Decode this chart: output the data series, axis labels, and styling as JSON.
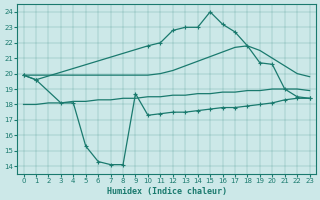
{
  "xlabel": "Humidex (Indice chaleur)",
  "background_color": "#cce8e8",
  "line_color": "#1a7a6e",
  "xlim": [
    -0.5,
    23.5
  ],
  "ylim": [
    13.5,
    24.5
  ],
  "xticks": [
    0,
    1,
    2,
    3,
    4,
    5,
    6,
    7,
    8,
    9,
    10,
    11,
    12,
    13,
    14,
    15,
    16,
    17,
    18,
    19,
    20,
    21,
    22,
    23
  ],
  "yticks": [
    14,
    15,
    16,
    17,
    18,
    19,
    20,
    21,
    22,
    23,
    24
  ],
  "line1_x": [
    0,
    1,
    2,
    3,
    4,
    5,
    6,
    7,
    8,
    9,
    10,
    11,
    12,
    13,
    14,
    15,
    16,
    17,
    18,
    19,
    20,
    21,
    22,
    23
  ],
  "line1_y": [
    19.9,
    19.9,
    19.9,
    19.9,
    19.9,
    19.9,
    19.9,
    19.9,
    19.9,
    19.9,
    19.9,
    20.0,
    20.2,
    20.5,
    20.8,
    21.1,
    21.4,
    21.7,
    21.8,
    21.5,
    21.0,
    20.5,
    20.0,
    19.8
  ],
  "line2_x": [
    0,
    1,
    2,
    3,
    4,
    5,
    6,
    7,
    8,
    9,
    10,
    11,
    12,
    13,
    14,
    15,
    16,
    17,
    18,
    19,
    20,
    21,
    22,
    23
  ],
  "line2_y": [
    18.0,
    18.0,
    18.1,
    18.1,
    18.2,
    18.2,
    18.3,
    18.3,
    18.4,
    18.4,
    18.5,
    18.5,
    18.6,
    18.6,
    18.7,
    18.7,
    18.8,
    18.8,
    18.9,
    18.9,
    19.0,
    19.0,
    19.0,
    18.9
  ],
  "line3_x": [
    0,
    1,
    3,
    4,
    5,
    6,
    7,
    8,
    9,
    10,
    11,
    12,
    13,
    14,
    15,
    16,
    17,
    18,
    19,
    20,
    21,
    22,
    23
  ],
  "line3_y": [
    19.9,
    19.6,
    18.1,
    18.1,
    15.3,
    14.3,
    14.1,
    14.1,
    18.7,
    17.3,
    17.4,
    17.5,
    17.5,
    17.6,
    17.7,
    17.8,
    17.8,
    17.9,
    18.0,
    18.1,
    18.3,
    18.4,
    18.4
  ],
  "line4_x": [
    0,
    1,
    10,
    11,
    12,
    13,
    14,
    15,
    16,
    17,
    18,
    19,
    20,
    21,
    22,
    23
  ],
  "line4_y": [
    19.9,
    19.6,
    21.8,
    22.0,
    22.8,
    23.0,
    23.0,
    24.0,
    23.2,
    22.7,
    21.8,
    20.7,
    20.6,
    19.0,
    18.5,
    18.4
  ]
}
